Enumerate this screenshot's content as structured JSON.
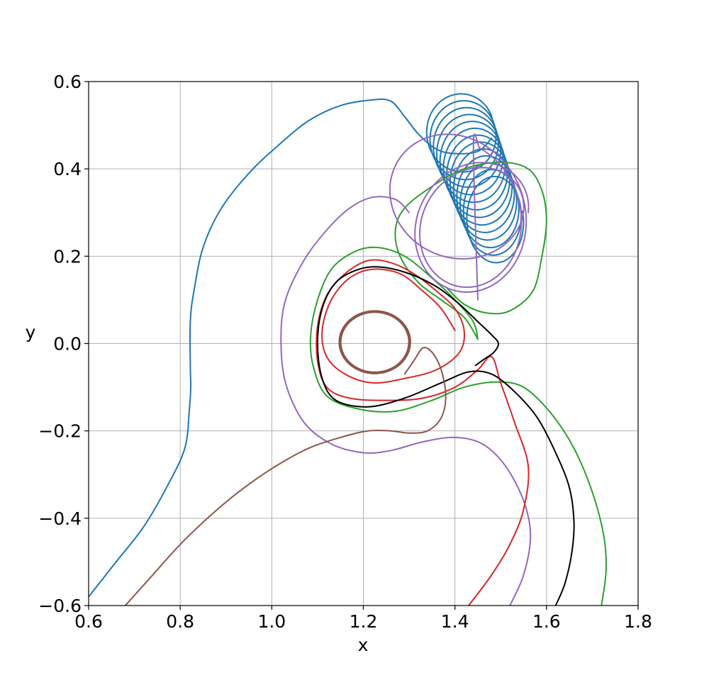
{
  "chart_data": {
    "type": "line",
    "title": "",
    "xlabel": "x",
    "ylabel": "y",
    "xlim": [
      0.6,
      1.8
    ],
    "ylim": [
      -0.6,
      0.6
    ],
    "xticks": [
      0.6,
      0.8,
      1.0,
      1.2,
      1.4,
      1.6,
      1.8
    ],
    "yticks": [
      -0.6,
      -0.4,
      -0.2,
      0.0,
      0.2,
      0.4,
      0.6
    ],
    "xtick_labels": [
      "0.6",
      "0.8",
      "1.0",
      "1.2",
      "1.4",
      "1.6",
      "1.8"
    ],
    "ytick_labels": [
      "−0.6",
      "−0.4",
      "−0.2",
      "0.0",
      "0.2",
      "0.4",
      "0.6"
    ],
    "grid": true,
    "legend": "none",
    "series": [
      {
        "color": "#1f77b4",
        "points": [
          [
            0.6,
            -0.58
          ],
          [
            0.66,
            -0.5
          ],
          [
            0.72,
            -0.42
          ],
          [
            0.77,
            -0.33
          ],
          [
            0.81,
            -0.24
          ],
          [
            0.82,
            -0.15
          ],
          [
            0.823,
            -0.1
          ],
          [
            0.822,
            -0.05
          ],
          [
            0.822,
            0.05
          ],
          [
            0.83,
            0.12
          ],
          [
            0.85,
            0.22
          ],
          [
            0.89,
            0.31
          ],
          [
            0.95,
            0.39
          ],
          [
            1.01,
            0.45
          ],
          [
            1.08,
            0.51
          ],
          [
            1.15,
            0.545
          ],
          [
            1.22,
            0.558
          ],
          [
            1.26,
            0.555
          ],
          [
            1.29,
            0.52
          ],
          [
            1.32,
            0.48
          ],
          [
            1.36,
            0.445
          ],
          [
            1.4,
            0.435
          ],
          [
            1.45,
            0.44
          ],
          [
            1.48,
            0.47
          ]
        ],
        "spiral": {
          "center_start": [
            1.41,
            0.49
          ],
          "center_end": [
            1.49,
            0.275
          ],
          "rx_start": 0.075,
          "rx_end": 0.06,
          "ry_start": 0.085,
          "ry_end": 0.095,
          "turns": 13
        }
      },
      {
        "color": "#2ca02c",
        "points": [
          [
            1.72,
            -0.6
          ],
          [
            1.73,
            -0.52
          ],
          [
            1.725,
            -0.44
          ],
          [
            1.7,
            -0.34
          ],
          [
            1.66,
            -0.24
          ],
          [
            1.61,
            -0.16
          ],
          [
            1.55,
            -0.1
          ],
          [
            1.49,
            -0.088
          ],
          [
            1.42,
            -0.1
          ],
          [
            1.35,
            -0.13
          ],
          [
            1.27,
            -0.155
          ],
          [
            1.19,
            -0.15
          ],
          [
            1.12,
            -0.12
          ],
          [
            1.09,
            -0.05
          ],
          [
            1.085,
            0.02
          ],
          [
            1.1,
            0.1
          ],
          [
            1.13,
            0.17
          ],
          [
            1.18,
            0.21
          ],
          [
            1.23,
            0.22
          ],
          [
            1.29,
            0.2
          ],
          [
            1.35,
            0.15
          ],
          [
            1.4,
            0.1
          ],
          [
            1.44,
            0.05
          ],
          [
            1.45,
            0.01
          ]
        ]
      },
      {
        "color": "#2ca02c",
        "points": [
          [
            1.45,
            0.01
          ],
          [
            1.42,
            0.06
          ],
          [
            1.37,
            0.1
          ],
          [
            1.32,
            0.14
          ],
          [
            1.28,
            0.2
          ],
          [
            1.27,
            0.26
          ],
          [
            1.29,
            0.31
          ],
          [
            1.35,
            0.36
          ],
          [
            1.42,
            0.4
          ],
          [
            1.5,
            0.415
          ],
          [
            1.56,
            0.4
          ],
          [
            1.59,
            0.35
          ],
          [
            1.6,
            0.28
          ],
          [
            1.59,
            0.2
          ],
          [
            1.57,
            0.12
          ],
          [
            1.52,
            0.075
          ],
          [
            1.47,
            0.07
          ],
          [
            1.42,
            0.09
          ],
          [
            1.38,
            0.13
          ]
        ]
      },
      {
        "color": "#9467bd",
        "points": [
          [
            1.52,
            -0.6
          ],
          [
            1.55,
            -0.53
          ],
          [
            1.565,
            -0.44
          ],
          [
            1.55,
            -0.36
          ],
          [
            1.51,
            -0.28
          ],
          [
            1.46,
            -0.23
          ],
          [
            1.4,
            -0.215
          ],
          [
            1.33,
            -0.225
          ],
          [
            1.26,
            -0.245
          ],
          [
            1.2,
            -0.25
          ],
          [
            1.13,
            -0.23
          ],
          [
            1.07,
            -0.18
          ],
          [
            1.03,
            -0.09
          ],
          [
            1.02,
            0.01
          ],
          [
            1.03,
            0.1
          ],
          [
            1.07,
            0.19
          ],
          [
            1.12,
            0.26
          ],
          [
            1.17,
            0.31
          ],
          [
            1.22,
            0.335
          ],
          [
            1.27,
            0.33
          ],
          [
            1.3,
            0.3
          ]
        ]
      },
      {
        "color": "#9467bd",
        "loops": [
          {
            "cx": 1.42,
            "cy": 0.3,
            "rx": 0.14,
            "ry": 0.15,
            "turns": 3.2,
            "shrink": 0.12,
            "drift": [
              0.03,
              -0.05
            ]
          }
        ],
        "end": [
          1.45,
          0.1
        ]
      },
      {
        "color": "#d62728",
        "points": [
          [
            1.43,
            -0.6
          ],
          [
            1.48,
            -0.53
          ],
          [
            1.52,
            -0.46
          ],
          [
            1.55,
            -0.38
          ],
          [
            1.56,
            -0.28
          ],
          [
            1.53,
            -0.18
          ],
          [
            1.5,
            -0.09
          ],
          [
            1.48,
            -0.03
          ],
          [
            1.45,
            -0.06
          ],
          [
            1.4,
            -0.1
          ],
          [
            1.33,
            -0.125
          ],
          [
            1.25,
            -0.13
          ],
          [
            1.17,
            -0.125
          ],
          [
            1.12,
            -0.1
          ],
          [
            1.1,
            -0.04
          ],
          [
            1.1,
            0.04
          ],
          [
            1.12,
            0.11
          ],
          [
            1.16,
            0.16
          ],
          [
            1.21,
            0.19
          ],
          [
            1.26,
            0.185
          ],
          [
            1.31,
            0.16
          ],
          [
            1.36,
            0.12
          ],
          [
            1.4,
            0.08
          ],
          [
            1.42,
            0.03
          ],
          [
            1.41,
            -0.02
          ],
          [
            1.36,
            -0.06
          ],
          [
            1.29,
            -0.08
          ],
          [
            1.22,
            -0.09
          ],
          [
            1.16,
            -0.07
          ],
          [
            1.12,
            -0.03
          ],
          [
            1.11,
            0.03
          ],
          [
            1.13,
            0.1
          ],
          [
            1.17,
            0.15
          ],
          [
            1.22,
            0.17
          ],
          [
            1.28,
            0.16
          ],
          [
            1.33,
            0.12
          ],
          [
            1.37,
            0.08
          ],
          [
            1.4,
            0.03
          ]
        ]
      },
      {
        "color": "#000000",
        "points": [
          [
            1.62,
            -0.6
          ],
          [
            1.64,
            -0.55
          ],
          [
            1.655,
            -0.48
          ],
          [
            1.66,
            -0.41
          ],
          [
            1.65,
            -0.33
          ],
          [
            1.62,
            -0.25
          ],
          [
            1.58,
            -0.17
          ],
          [
            1.53,
            -0.11
          ],
          [
            1.48,
            -0.07
          ],
          [
            1.43,
            -0.065
          ],
          [
            1.37,
            -0.09
          ],
          [
            1.29,
            -0.125
          ],
          [
            1.21,
            -0.145
          ],
          [
            1.14,
            -0.13
          ],
          [
            1.11,
            -0.08
          ],
          [
            1.1,
            0.0
          ],
          [
            1.11,
            0.08
          ],
          [
            1.14,
            0.14
          ],
          [
            1.19,
            0.17
          ],
          [
            1.24,
            0.175
          ],
          [
            1.3,
            0.16
          ],
          [
            1.36,
            0.13
          ],
          [
            1.41,
            0.09
          ],
          [
            1.45,
            0.05
          ],
          [
            1.48,
            0.02
          ],
          [
            1.495,
            0.0
          ],
          [
            1.485,
            -0.02
          ],
          [
            1.465,
            -0.035
          ],
          [
            1.445,
            -0.05
          ]
        ]
      },
      {
        "color": "#8c564b",
        "points": [
          [
            0.68,
            -0.6
          ],
          [
            0.74,
            -0.53
          ],
          [
            0.8,
            -0.46
          ],
          [
            0.87,
            -0.39
          ],
          [
            0.94,
            -0.33
          ],
          [
            1.01,
            -0.28
          ],
          [
            1.08,
            -0.24
          ],
          [
            1.15,
            -0.215
          ],
          [
            1.21,
            -0.2
          ],
          [
            1.26,
            -0.2
          ],
          [
            1.3,
            -0.205
          ],
          [
            1.34,
            -0.2
          ],
          [
            1.37,
            -0.17
          ],
          [
            1.38,
            -0.12
          ],
          [
            1.37,
            -0.06
          ],
          [
            1.35,
            -0.02
          ],
          [
            1.33,
            -0.01
          ],
          [
            1.31,
            -0.04
          ],
          [
            1.29,
            -0.07
          ]
        ],
        "loops": [
          {
            "cx": 1.225,
            "cy": 0.003,
            "rx": 0.078,
            "ry": 0.072,
            "turns": 12,
            "shrink": 0.05,
            "drift": [
              0.0,
              0.0
            ]
          }
        ]
      }
    ]
  }
}
